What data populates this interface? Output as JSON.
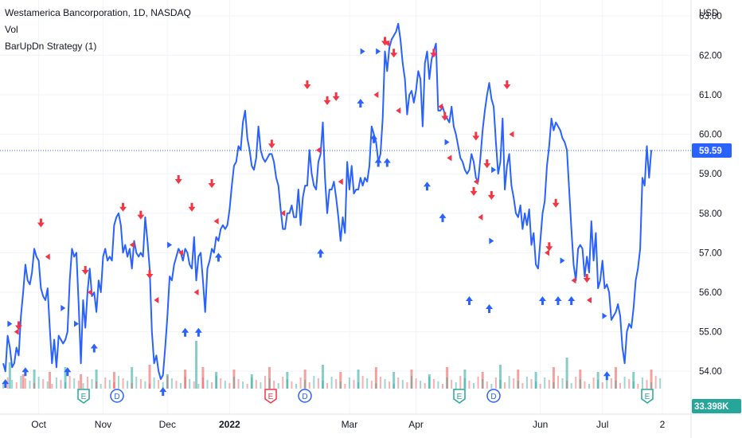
{
  "header": {
    "title": "Westamerica Bancorporation, 1D, NASDAQ",
    "indicator_vol": "Vol",
    "indicator_strategy": "BarUpDn Strategy (1)"
  },
  "price_axis": {
    "currency": "USD",
    "ticks": [
      "63.00",
      "62.00",
      "61.00",
      "60.00",
      "59.00",
      "58.00",
      "57.00",
      "56.00",
      "55.00",
      "54.00"
    ],
    "last_price_label": "59.59",
    "volume_label": "33.398K"
  },
  "time_axis": {
    "labels": [
      "Oct",
      "Nov",
      "Dec",
      "2022",
      "Mar",
      "Apr",
      "Jun",
      "Jul",
      "2"
    ]
  },
  "colors": {
    "line": "#2962ff",
    "up_arrow": "#2962ff",
    "down_arrow": "#f23645",
    "vol_up": "#26a69a",
    "vol_down": "#ef5350",
    "earnings": "#26a69a",
    "earnings_alt": "#f23645",
    "dividend": "#2962ff",
    "price_tag": "#2962ff",
    "vol_tag": "#26a69a"
  },
  "events": [
    {
      "type": "E",
      "label": "E",
      "x": 25
    },
    {
      "type": "D",
      "label": "D",
      "x": 33
    },
    {
      "type": "D",
      "label": "D",
      "x": 77
    },
    {
      "type": "E",
      "label": "E",
      "x": 116
    },
    {
      "type": "D",
      "label": "D",
      "x": 132
    },
    {
      "type": "E",
      "label": "E",
      "x": 203
    },
    {
      "type": "D",
      "label": "D",
      "x": 216
    },
    {
      "type": "E",
      "label": "E",
      "x": 284
    }
  ],
  "chart_data": {
    "type": "line",
    "title": "Westamerica Bancorporation, 1D, NASDAQ",
    "xlabel": "",
    "ylabel": "USD",
    "ylim": [
      53.6,
      63.4
    ],
    "x_range": [
      0,
      297
    ],
    "x_ticks": [
      {
        "x": 16,
        "label": "Oct"
      },
      {
        "x": 45,
        "label": "Nov"
      },
      {
        "x": 74,
        "label": "Dec"
      },
      {
        "x": 102,
        "label": "2022"
      },
      {
        "x": 156,
        "label": "Mar"
      },
      {
        "x": 186,
        "label": "Apr"
      },
      {
        "x": 242,
        "label": "Jun"
      },
      {
        "x": 270,
        "label": "Jul"
      },
      {
        "x": 297,
        "label": "2"
      }
    ],
    "last_value": 59.59,
    "series": [
      {
        "values": [
          54.2,
          54.0,
          54.9,
          54.6,
          54.1,
          54.2,
          54.6,
          54.4,
          55.4,
          56.0,
          56.7,
          56.3,
          56.2,
          56.5,
          57.1,
          56.9,
          56.8,
          56.1,
          55.9,
          55.8,
          56.1,
          55.1,
          54.2,
          54.8,
          54.1,
          54.9,
          54.8,
          54.7,
          54.8,
          55.0,
          56.3,
          57.1,
          56.9,
          57.0,
          55.7,
          54.2,
          55.8,
          55.1,
          56.0,
          56.6,
          55.9,
          56.0,
          55.5,
          56.3,
          56.0,
          56.9,
          57.1,
          56.8,
          56.9,
          56.8,
          57.7,
          57.9,
          58.0,
          57.7,
          57.0,
          57.2,
          56.9,
          57.1,
          56.6,
          57.3,
          57.0,
          56.9,
          57.0,
          56.9,
          57.9,
          57.3,
          56.6,
          55.0,
          54.2,
          54.4,
          54.0,
          53.8,
          53.9,
          54.6,
          55.4,
          56.4,
          56.3,
          56.7,
          56.9,
          57.1,
          57.0,
          56.8,
          57.1,
          57.0,
          56.7,
          56.6,
          57.4,
          56.3,
          56.9,
          57.0,
          56.3,
          55.5,
          56.6,
          56.8,
          57.1,
          57.0,
          57.4,
          57.3,
          57.6,
          57.7,
          57.6,
          57.7,
          58.1,
          58.7,
          59.2,
          59.3,
          59.7,
          59.6,
          60.3,
          60.6,
          59.9,
          59.6,
          59.2,
          59.1,
          59.4,
          60.2,
          59.6,
          59.4,
          59.3,
          59.4,
          59.5,
          59.5,
          59.3,
          58.9,
          58.7,
          58.1,
          57.6,
          57.6,
          58.0,
          58.0,
          58.2,
          57.9,
          57.9,
          58.6,
          57.7,
          58.4,
          58.7,
          58.7,
          59.6,
          59.0,
          58.7,
          58.6,
          59.3,
          59.5,
          60.3,
          58.9,
          58.0,
          58.6,
          58.6,
          58.8,
          58.4,
          57.9,
          57.3,
          57.9,
          57.5,
          59.3,
          58.6,
          59.2,
          58.5,
          58.6,
          58.6,
          58.9,
          58.7,
          58.9,
          58.8,
          59.2,
          60.2,
          60.0,
          59.8,
          59.3,
          59.5,
          60.4,
          62.1,
          61.6,
          62.2,
          62.4,
          62.5,
          62.6,
          62.8,
          62.4,
          61.8,
          61.4,
          60.5,
          61.0,
          61.1,
          60.8,
          61.1,
          61.6,
          61.4,
          60.2,
          61.8,
          62.1,
          61.4,
          61.9,
          62.1,
          62.3,
          60.6,
          60.6,
          60.7,
          60.5,
          60.4,
          60.3,
          60.7,
          60.2,
          60.0,
          59.7,
          59.4,
          59.3,
          59.1,
          59.0,
          59.1,
          59.5,
          59.3,
          58.9,
          58.8,
          59.4,
          60.1,
          60.6,
          61.0,
          61.3,
          60.9,
          60.7,
          59.8,
          59.0,
          59.3,
          60.4,
          58.6,
          59.2,
          59.5,
          58.7,
          58.4,
          58.0,
          57.9,
          58.2,
          57.6,
          58.0,
          57.7,
          58.1,
          57.2,
          57.5,
          56.7,
          56.6,
          57.3,
          58.0,
          58.3,
          59.2,
          59.7,
          60.4,
          60.1,
          60.3,
          60.2,
          60.1,
          59.9,
          59.8,
          59.6,
          58.6,
          57.6,
          56.7,
          56.3,
          57.1,
          57.2,
          57.1,
          56.4,
          56.9,
          56.5,
          57.8,
          56.8,
          57.5,
          56.1,
          56.3,
          56.8,
          56.1,
          56.2,
          56.0,
          55.3,
          55.4,
          55.5,
          55.7,
          55.4,
          54.6,
          54.2,
          55.0,
          55.2,
          55.1,
          55.6,
          56.3,
          56.6,
          57.1,
          58.9,
          58.7,
          59.7,
          58.9,
          59.6
        ]
      }
    ],
    "volume": [
      {
        "x": 3,
        "v": 0.55,
        "up": true
      },
      {
        "x": 9,
        "v": 0.3,
        "up": false
      },
      {
        "x": 14,
        "v": 0.4,
        "up": true
      },
      {
        "x": 21,
        "v": 0.35,
        "up": false
      },
      {
        "x": 28,
        "v": 0.45,
        "up": true
      },
      {
        "x": 35,
        "v": 0.3,
        "up": false
      },
      {
        "x": 42,
        "v": 0.4,
        "up": true
      },
      {
        "x": 50,
        "v": 0.35,
        "up": false
      },
      {
        "x": 58,
        "v": 0.45,
        "up": true
      },
      {
        "x": 66,
        "v": 0.5,
        "up": false
      },
      {
        "x": 74,
        "v": 0.3,
        "up": true
      },
      {
        "x": 82,
        "v": 0.4,
        "up": false
      },
      {
        "x": 87,
        "v": 1.0,
        "up": true
      },
      {
        "x": 90,
        "v": 0.45,
        "up": false
      },
      {
        "x": 96,
        "v": 0.35,
        "up": true
      },
      {
        "x": 104,
        "v": 0.4,
        "up": false
      },
      {
        "x": 112,
        "v": 0.3,
        "up": true
      },
      {
        "x": 120,
        "v": 0.45,
        "up": false
      },
      {
        "x": 128,
        "v": 0.35,
        "up": true
      },
      {
        "x": 136,
        "v": 0.4,
        "up": false
      },
      {
        "x": 144,
        "v": 0.5,
        "up": true
      },
      {
        "x": 152,
        "v": 0.35,
        "up": false
      },
      {
        "x": 160,
        "v": 0.4,
        "up": true
      },
      {
        "x": 168,
        "v": 0.45,
        "up": false
      },
      {
        "x": 176,
        "v": 0.35,
        "up": true
      },
      {
        "x": 184,
        "v": 0.4,
        "up": false
      },
      {
        "x": 192,
        "v": 0.3,
        "up": true
      },
      {
        "x": 200,
        "v": 0.45,
        "up": false
      },
      {
        "x": 208,
        "v": 0.4,
        "up": true
      },
      {
        "x": 216,
        "v": 0.35,
        "up": false
      },
      {
        "x": 224,
        "v": 0.5,
        "up": true
      },
      {
        "x": 232,
        "v": 0.4,
        "up": false
      },
      {
        "x": 240,
        "v": 0.35,
        "up": true
      },
      {
        "x": 248,
        "v": 0.45,
        "up": false
      },
      {
        "x": 254,
        "v": 0.65,
        "up": true
      },
      {
        "x": 260,
        "v": 0.4,
        "up": false
      },
      {
        "x": 268,
        "v": 0.35,
        "up": true
      },
      {
        "x": 276,
        "v": 0.45,
        "up": false
      },
      {
        "x": 284,
        "v": 0.35,
        "up": true
      },
      {
        "x": 292,
        "v": 0.4,
        "up": false
      }
    ],
    "signals": [
      {
        "x": 3,
        "y": 55.2,
        "kind": "entry_right"
      },
      {
        "x": 6,
        "y": 55.0,
        "kind": "exit_left"
      },
      {
        "x": 7,
        "y": 54.8,
        "kind": "down"
      },
      {
        "x": 17,
        "y": 57.4,
        "kind": "down"
      },
      {
        "x": 20,
        "y": 56.9,
        "kind": "exit_left"
      },
      {
        "x": 27,
        "y": 55.6,
        "kind": "entry_right"
      },
      {
        "x": 33,
        "y": 55.2,
        "kind": "entry_right"
      },
      {
        "x": 37,
        "y": 56.2,
        "kind": "down"
      },
      {
        "x": 39,
        "y": 56.0,
        "kind": "exit_left"
      },
      {
        "x": 54,
        "y": 57.8,
        "kind": "down"
      },
      {
        "x": 58,
        "y": 57.2,
        "kind": "exit_left"
      },
      {
        "x": 62,
        "y": 57.6,
        "kind": "down"
      },
      {
        "x": 66,
        "y": 56.1,
        "kind": "down"
      },
      {
        "x": 69,
        "y": 55.8,
        "kind": "exit_left"
      },
      {
        "x": 75,
        "y": 57.2,
        "kind": "entry_right"
      },
      {
        "x": 79,
        "y": 58.5,
        "kind": "down"
      },
      {
        "x": 80,
        "y": 57.0,
        "kind": "exit_left"
      },
      {
        "x": 85,
        "y": 57.8,
        "kind": "down"
      },
      {
        "x": 87,
        "y": 56.0,
        "kind": "exit_left"
      },
      {
        "x": 94,
        "y": 58.4,
        "kind": "down"
      },
      {
        "x": 96,
        "y": 57.8,
        "kind": "exit_left"
      },
      {
        "x": 121,
        "y": 59.4,
        "kind": "down"
      },
      {
        "x": 126,
        "y": 58.0,
        "kind": "exit_left"
      },
      {
        "x": 137,
        "y": 60.9,
        "kind": "down"
      },
      {
        "x": 142,
        "y": 59.6,
        "kind": "exit_left"
      },
      {
        "x": 146,
        "y": 60.5,
        "kind": "down"
      },
      {
        "x": 150,
        "y": 60.6,
        "kind": "down"
      },
      {
        "x": 152,
        "y": 58.8,
        "kind": "exit_left"
      },
      {
        "x": 162,
        "y": 62.1,
        "kind": "entry_right"
      },
      {
        "x": 169,
        "y": 62.1,
        "kind": "entry_right"
      },
      {
        "x": 171,
        "y": 63.5,
        "kind": "down"
      },
      {
        "x": 172,
        "y": 62.0,
        "kind": "down"
      },
      {
        "x": 168,
        "y": 61.0,
        "kind": "exit_left"
      },
      {
        "x": 173,
        "y": 62.3,
        "kind": "exit_left"
      },
      {
        "x": 176,
        "y": 61.7,
        "kind": "down"
      },
      {
        "x": 178,
        "y": 60.6,
        "kind": "exit_left"
      },
      {
        "x": 194,
        "y": 61.7,
        "kind": "down"
      },
      {
        "x": 197,
        "y": 60.7,
        "kind": "exit_left"
      },
      {
        "x": 199,
        "y": 60.1,
        "kind": "down"
      },
      {
        "x": 200,
        "y": 59.8,
        "kind": "entry_right"
      },
      {
        "x": 201,
        "y": 59.4,
        "kind": "exit_left"
      },
      {
        "x": 213,
        "y": 59.6,
        "kind": "down"
      },
      {
        "x": 213,
        "y": 58.8,
        "kind": "exit_left"
      },
      {
        "x": 221,
        "y": 59.1,
        "kind": "entry_right"
      },
      {
        "x": 227,
        "y": 60.9,
        "kind": "down"
      },
      {
        "x": 229,
        "y": 60.0,
        "kind": "exit_left"
      },
      {
        "x": 218,
        "y": 58.9,
        "kind": "down"
      },
      {
        "x": 220,
        "y": 58.1,
        "kind": "down"
      },
      {
        "x": 212,
        "y": 58.2,
        "kind": "down"
      },
      {
        "x": 215,
        "y": 57.9,
        "kind": "exit_left"
      },
      {
        "x": 220,
        "y": 57.3,
        "kind": "entry_right"
      },
      {
        "x": 249,
        "y": 57.9,
        "kind": "down"
      },
      {
        "x": 245,
        "y": 57.0,
        "kind": "exit_left"
      },
      {
        "x": 246,
        "y": 56.8,
        "kind": "down"
      },
      {
        "x": 252,
        "y": 56.8,
        "kind": "entry_right"
      },
      {
        "x": 257,
        "y": 56.3,
        "kind": "exit_left"
      },
      {
        "x": 263,
        "y": 56.0,
        "kind": "down"
      },
      {
        "x": 264,
        "y": 55.8,
        "kind": "exit_left"
      },
      {
        "x": 271,
        "y": 55.4,
        "kind": "entry_right"
      }
    ],
    "up_arrows_below": [
      {
        "x": 1,
        "y": 54.0
      },
      {
        "x": 10,
        "y": 54.3
      },
      {
        "x": 29,
        "y": 54.3
      },
      {
        "x": 41,
        "y": 54.9
      },
      {
        "x": 72,
        "y": 53.8
      },
      {
        "x": 82,
        "y": 55.3
      },
      {
        "x": 88,
        "y": 55.3
      },
      {
        "x": 97,
        "y": 57.2
      },
      {
        "x": 143,
        "y": 57.3
      },
      {
        "x": 161,
        "y": 61.1
      },
      {
        "x": 167,
        "y": 60.2
      },
      {
        "x": 169,
        "y": 59.6
      },
      {
        "x": 173,
        "y": 59.6
      },
      {
        "x": 191,
        "y": 59.0
      },
      {
        "x": 198,
        "y": 58.2
      },
      {
        "x": 210,
        "y": 56.1
      },
      {
        "x": 219,
        "y": 55.9
      },
      {
        "x": 243,
        "y": 56.1
      },
      {
        "x": 250,
        "y": 56.1
      },
      {
        "x": 256,
        "y": 56.1
      },
      {
        "x": 272,
        "y": 54.2
      }
    ]
  }
}
